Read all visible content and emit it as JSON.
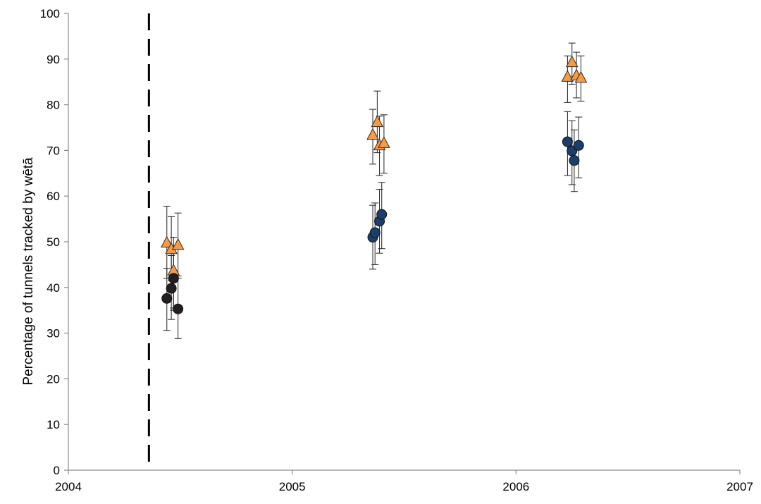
{
  "chart_data": {
    "type": "scatter",
    "title": "",
    "xlabel": "",
    "ylabel": "Percentage of tunnels tracked by wētā",
    "xlim": [
      2004,
      2007
    ],
    "ylim": [
      0,
      100
    ],
    "x_ticks": [
      "2004",
      "2005",
      "2006",
      "2007"
    ],
    "y_ticks": [
      "0",
      "10",
      "20",
      "30",
      "40",
      "50",
      "60",
      "70",
      "80",
      "90",
      "100"
    ],
    "grid": false,
    "legend": "none",
    "reference_line": {
      "x": 2004.36,
      "style": "dashed",
      "color": "#000000"
    },
    "series": [
      {
        "marker": "triangle",
        "color": "#F39B4B",
        "points": [
          {
            "x": 2004.44,
            "y": 49.7,
            "err_low": 42.0,
            "err_high": 57.8
          },
          {
            "x": 2004.46,
            "y": 48.3,
            "err_low": 41.5,
            "err_high": 55.5
          },
          {
            "x": 2004.47,
            "y": 43.6,
            "err_low": 35.5,
            "err_high": 51.0
          },
          {
            "x": 2004.49,
            "y": 49.2,
            "err_low": 42.0,
            "err_high": 56.3
          },
          {
            "x": 2005.36,
            "y": 73.3,
            "err_low": 67.0,
            "err_high": 79.0
          },
          {
            "x": 2005.38,
            "y": 76.1,
            "err_low": 69.5,
            "err_high": 83.0
          },
          {
            "x": 2005.39,
            "y": 71.0,
            "err_low": 64.5,
            "err_high": 77.5
          },
          {
            "x": 2005.41,
            "y": 71.5,
            "err_low": 65.0,
            "err_high": 77.8
          },
          {
            "x": 2006.23,
            "y": 86.0,
            "err_low": 80.5,
            "err_high": 90.7
          },
          {
            "x": 2006.25,
            "y": 89.2,
            "err_low": 84.5,
            "err_high": 93.5
          },
          {
            "x": 2006.27,
            "y": 86.3,
            "err_low": 81.5,
            "err_high": 91.5
          },
          {
            "x": 2006.29,
            "y": 85.8,
            "err_low": 80.8,
            "err_high": 90.7
          }
        ]
      },
      {
        "marker": "circle",
        "color": "#231F20",
        "points": [
          {
            "x": 2004.44,
            "y": 37.6,
            "err_low": 30.6,
            "err_high": 44.2
          },
          {
            "x": 2004.46,
            "y": 39.8,
            "err_low": 33.0,
            "err_high": 47.0
          },
          {
            "x": 2004.47,
            "y": 42.0,
            "err_low": 35.0,
            "err_high": 49.0
          },
          {
            "x": 2004.49,
            "y": 35.3,
            "err_low": 28.8,
            "err_high": 42.5
          }
        ]
      },
      {
        "marker": "circle",
        "color": "#1B3E6B",
        "points": [
          {
            "x": 2005.36,
            "y": 51.0,
            "err_low": 44.0,
            "err_high": 58.0
          },
          {
            "x": 2005.37,
            "y": 52.0,
            "err_low": 45.0,
            "err_high": 58.5
          },
          {
            "x": 2005.39,
            "y": 54.5,
            "err_low": 47.5,
            "err_high": 61.5
          },
          {
            "x": 2005.4,
            "y": 56.0,
            "err_low": 48.5,
            "err_high": 63.0
          },
          {
            "x": 2006.23,
            "y": 71.9,
            "err_low": 64.5,
            "err_high": 78.5
          },
          {
            "x": 2006.25,
            "y": 69.9,
            "err_low": 62.5,
            "err_high": 76.5
          },
          {
            "x": 2006.26,
            "y": 67.8,
            "err_low": 61.0,
            "err_high": 74.5
          },
          {
            "x": 2006.28,
            "y": 71.1,
            "err_low": 64.0,
            "err_high": 77.3
          }
        ]
      }
    ]
  }
}
